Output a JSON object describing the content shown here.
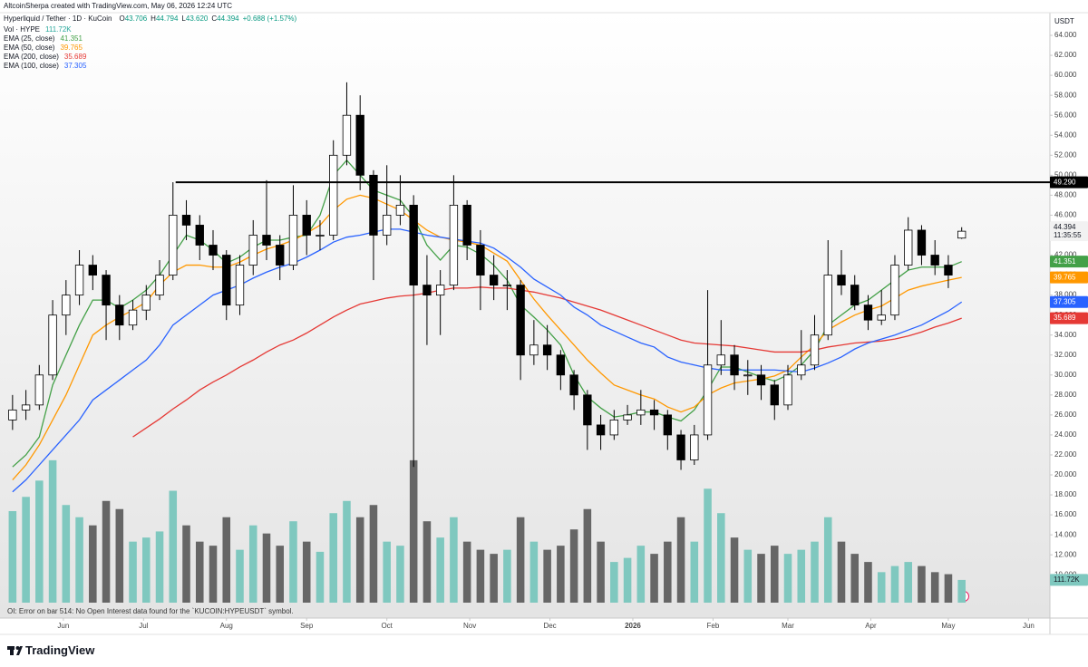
{
  "page": {
    "attribution": "AltcoinSherpa created with TradingView.com, May 06, 2026 12:24 UTC",
    "logo": "TradingView",
    "status": "OI: Error on bar 514: No Open Interest data found for the `KUCOIN:HYPEUSDT` symbol."
  },
  "chart_data": {
    "type": "candlestick",
    "title": "Hyperliquid / Tether · 1D · KuCoin",
    "ohlc_legend": [
      {
        "key": "O",
        "label": "43.706"
      },
      {
        "key": "H",
        "label": "44.794"
      },
      {
        "key": "L",
        "label": "43.620"
      },
      {
        "key": "C",
        "label": "44.394"
      }
    ],
    "change": "+0.688 (+1.57%)",
    "y_unit": "USDT",
    "countdown": "11:35:55",
    "candle_colors": {
      "up": "#ffffff",
      "down": "#000000",
      "outline": "#000000"
    },
    "x": [
      3,
      8,
      13,
      18,
      23,
      28,
      33,
      38,
      43,
      48,
      53,
      58,
      63,
      68,
      73,
      78,
      83,
      88,
      93,
      98,
      103,
      108,
      113,
      118,
      123,
      128,
      133,
      138,
      143,
      148,
      153,
      158,
      163,
      168,
      173,
      178,
      183,
      188,
      193,
      198,
      203,
      208,
      213,
      218,
      223,
      228,
      233,
      238,
      243,
      248,
      253,
      258,
      263,
      268,
      273,
      278,
      283,
      288,
      293,
      298,
      303,
      308,
      313,
      318,
      323,
      328,
      333,
      338,
      343,
      348,
      353,
      358
    ],
    "open": [
      25.5,
      26.5,
      27,
      30,
      36,
      38,
      41,
      40,
      37,
      35,
      36.5,
      38,
      40,
      46,
      45,
      43,
      42,
      37,
      41,
      44,
      43,
      41,
      46,
      44,
      44,
      52,
      56,
      50,
      44,
      46,
      47,
      39,
      38,
      39,
      47,
      43,
      40,
      39,
      39,
      32,
      33,
      32,
      30,
      28,
      25,
      24,
      25.5,
      26,
      26.5,
      26,
      24,
      21.5,
      24,
      31,
      32,
      30,
      30,
      29,
      27,
      30,
      31,
      34,
      40,
      39,
      37,
      35.5,
      36,
      41,
      44.5,
      42,
      41,
      43.706
    ],
    "high": [
      28,
      28.5,
      31,
      37.5,
      39.5,
      42.5,
      42,
      40.5,
      38,
      37.5,
      39,
      41.5,
      49.3,
      47.5,
      46,
      44.5,
      42.5,
      42,
      45.5,
      49.5,
      44,
      49,
      47.5,
      45.5,
      53.5,
      59.3,
      58,
      50.5,
      51,
      50,
      48,
      42,
      40.5,
      50,
      47.5,
      44.5,
      42,
      40.5,
      39.5,
      35.5,
      35,
      32.5,
      30.5,
      28.5,
      26,
      26.5,
      27,
      28.5,
      27.5,
      26.5,
      24.5,
      25,
      38.5,
      35.5,
      33,
      31.5,
      31,
      29.5,
      31,
      34.5,
      36,
      43.5,
      42.5,
      40,
      38,
      38.5,
      42,
      45.8,
      45,
      43.5,
      42,
      44.794
    ],
    "low": [
      24.5,
      25.5,
      26.5,
      29.5,
      34,
      37,
      38.5,
      33.5,
      33.5,
      34.5,
      35.5,
      37.5,
      39.5,
      43.5,
      41.5,
      40.5,
      35.5,
      36,
      40,
      41.5,
      39.5,
      40.5,
      42,
      42.5,
      43.5,
      51,
      48.5,
      39.5,
      43,
      45,
      20.8,
      33,
      34,
      38.5,
      41.5,
      36.5,
      37.5,
      36.5,
      29.5,
      31,
      30.5,
      28.5,
      26.5,
      22.5,
      22.5,
      23.5,
      25,
      25,
      24.5,
      22.5,
      20.5,
      21,
      23.5,
      30,
      28.5,
      28,
      27.5,
      25.5,
      26.5,
      29.5,
      30.5,
      33.5,
      38,
      36.5,
      34.5,
      35,
      35.5,
      40.5,
      41,
      40,
      38.7,
      43.62
    ],
    "close": [
      26.5,
      27,
      30,
      36,
      38,
      41,
      40,
      37,
      35,
      36.5,
      38,
      40,
      46,
      45,
      43,
      42,
      37,
      41,
      44,
      43,
      41,
      46,
      44,
      44,
      52,
      56,
      50,
      44,
      46,
      47,
      39,
      38,
      39,
      47,
      43,
      40,
      39,
      39,
      32,
      33,
      32,
      30,
      28,
      25,
      24,
      25.5,
      26,
      26.5,
      26,
      24,
      21.5,
      24,
      31,
      32,
      30,
      30,
      29,
      27,
      30,
      31,
      34,
      40,
      39,
      37,
      35.5,
      36,
      41,
      44.5,
      42,
      41,
      40,
      44.394
    ],
    "series": [
      {
        "name": "Vol · HYPE",
        "type": "bar",
        "axis": "y2",
        "colors": {
          "up": "#7fc8bf",
          "down": "#666666"
        },
        "last_label": "111.72K",
        "values": [
          450,
          520,
          600,
          700,
          480,
          420,
          380,
          500,
          460,
          300,
          320,
          350,
          550,
          380,
          300,
          280,
          420,
          260,
          380,
          340,
          280,
          400,
          300,
          250,
          440,
          500,
          420,
          480,
          300,
          280,
          700,
          400,
          320,
          420,
          300,
          260,
          240,
          260,
          420,
          300,
          260,
          280,
          360,
          460,
          300,
          200,
          220,
          280,
          240,
          300,
          420,
          300,
          560,
          440,
          320,
          260,
          240,
          280,
          240,
          260,
          300,
          420,
          300,
          240,
          200,
          150,
          180,
          200,
          180,
          150,
          140,
          111.72
        ]
      },
      {
        "name": "EMA (25, close)",
        "type": "line",
        "color": "#43a047",
        "values": [
          20.8,
          22,
          23.8,
          29,
          32,
          35,
          37.5,
          37.5,
          36.7,
          37.5,
          38.5,
          40,
          42,
          44,
          43.5,
          42.5,
          41.2,
          41.8,
          42.8,
          43.5,
          43.5,
          43.8,
          44,
          46,
          50,
          51.5,
          50,
          48.5,
          48,
          47.5,
          45.8,
          43,
          41.5,
          43,
          42.8,
          42.1,
          41,
          39.5,
          37,
          35.8,
          34.5,
          33,
          30,
          27.8,
          26.7,
          25.8,
          26,
          26.3,
          26.3,
          25.8,
          25.4,
          26.5,
          28.5,
          30.8,
          30.8,
          30.3,
          29.8,
          29.4,
          30,
          31,
          32.5,
          35,
          36,
          37,
          37.5,
          38.5,
          39.5,
          40.5,
          40.8,
          40.8,
          40.8,
          41.351
        ]
      },
      {
        "name": "EMA (50, close)",
        "type": "line",
        "color": "#ff9800",
        "values": [
          19.5,
          21,
          23,
          25.5,
          28,
          31,
          34,
          35,
          35.8,
          36.5,
          37.3,
          39,
          40.3,
          41,
          41,
          40.8,
          40.8,
          41.3,
          42,
          42.6,
          43,
          43.5,
          44.2,
          45,
          46.5,
          47.6,
          48,
          47.7,
          47.1,
          46.5,
          45.5,
          44.5,
          43.8,
          43.5,
          43.3,
          43,
          42.2,
          41.4,
          39.5,
          37.6,
          36,
          34.5,
          33,
          31.5,
          30.2,
          29,
          28.5,
          28,
          27.6,
          26.8,
          26.3,
          26.8,
          28,
          28.7,
          29.2,
          29.4,
          29.6,
          29.9,
          30.5,
          31.8,
          33,
          34.5,
          35.3,
          36,
          36.5,
          36.9,
          37.7,
          38.5,
          38.9,
          39.2,
          39.5,
          39.765
        ]
      },
      {
        "name": "EMA (200, close)",
        "type": "line",
        "color": "#e53935",
        "values": [
          null,
          null,
          null,
          null,
          null,
          null,
          null,
          null,
          null,
          23.8,
          24.7,
          25.6,
          26.6,
          27.5,
          28.5,
          29.3,
          30,
          30.8,
          31.5,
          32.3,
          33,
          33.5,
          34.2,
          35,
          35.8,
          36.5,
          37.1,
          37.4,
          37.7,
          37.9,
          38,
          38.2,
          38.5,
          38.7,
          38.7,
          38.8,
          38.7,
          38.7,
          38.5,
          38.3,
          38,
          37.7,
          37.3,
          36.9,
          36.5,
          36,
          35.5,
          35,
          34.5,
          34,
          33.5,
          33.2,
          33.1,
          33,
          32.9,
          32.7,
          32.5,
          32.3,
          32.3,
          32.3,
          32.5,
          32.8,
          33,
          33.2,
          33.3,
          33.4,
          33.6,
          33.9,
          34.3,
          34.8,
          35.2,
          35.689
        ]
      },
      {
        "name": "EMA (100, close)",
        "type": "line",
        "color": "#2962ff",
        "values": [
          18.3,
          19.5,
          21,
          22.5,
          24,
          25.5,
          27.5,
          28.5,
          29.5,
          30.5,
          31.5,
          33,
          35,
          36,
          37,
          38,
          38.5,
          39,
          39.7,
          40.3,
          40.8,
          41.2,
          41.8,
          42.5,
          43.3,
          43.8,
          44,
          44.3,
          44.6,
          44.6,
          44.3,
          44,
          43.8,
          43.6,
          43.4,
          43.2,
          42.7,
          41.8,
          40.8,
          39.6,
          38.8,
          38,
          36.8,
          36,
          35,
          34.4,
          33.8,
          33.2,
          32.8,
          31.8,
          31.3,
          31,
          30.7,
          30.5,
          30.5,
          30.5,
          30.5,
          30.5,
          30.4,
          30.3,
          30.7,
          31.2,
          31.8,
          32.6,
          33.2,
          33.6,
          34,
          34.5,
          35,
          35.7,
          36.4,
          37.305
        ]
      }
    ],
    "hline": {
      "value": 49.29,
      "label": "49.290",
      "x_start": 64
    },
    "xlim": [
      0,
      391
    ],
    "xticks": [
      {
        "value": 22,
        "label": "Jun"
      },
      {
        "value": 52,
        "label": "Jul"
      },
      {
        "value": 83,
        "label": "Aug"
      },
      {
        "value": 113,
        "label": "Sep"
      },
      {
        "value": 143,
        "label": "Oct"
      },
      {
        "value": 174,
        "label": "Nov"
      },
      {
        "value": 204,
        "label": "Dec"
      },
      {
        "value": 235,
        "label": "2026"
      },
      {
        "value": 265,
        "label": "Feb"
      },
      {
        "value": 293,
        "label": "Mar"
      },
      {
        "value": 324,
        "label": "Apr"
      },
      {
        "value": 353,
        "label": "May"
      },
      {
        "value": 383,
        "label": "Jun"
      }
    ],
    "ylim": [
      7.21,
      66.27
    ],
    "yticks": [
      {
        "value": 10,
        "label": "10.000"
      },
      {
        "value": 12,
        "label": "12.000"
      },
      {
        "value": 14,
        "label": "14.000"
      },
      {
        "value": 16,
        "label": "16.000"
      },
      {
        "value": 18,
        "label": "18.000"
      },
      {
        "value": 20,
        "label": "20.000"
      },
      {
        "value": 22,
        "label": "22.000"
      },
      {
        "value": 24,
        "label": "24.000"
      },
      {
        "value": 26,
        "label": "26.000"
      },
      {
        "value": 28,
        "label": "28.000"
      },
      {
        "value": 30,
        "label": "30.000"
      },
      {
        "value": 32,
        "label": "32.000"
      },
      {
        "value": 34,
        "label": "34.000"
      },
      {
        "value": 36,
        "label": "36.000"
      },
      {
        "value": 38,
        "label": "38.000"
      },
      {
        "value": 40,
        "label": "40.000"
      },
      {
        "value": 42,
        "label": "42.000"
      },
      {
        "value": 44,
        "label": "44.000"
      },
      {
        "value": 46,
        "label": "46.000"
      },
      {
        "value": 48,
        "label": "48.000"
      },
      {
        "value": 50,
        "label": "50.000"
      },
      {
        "value": 52,
        "label": "52.000"
      },
      {
        "value": 54,
        "label": "54.000"
      },
      {
        "value": 56,
        "label": "56.000"
      },
      {
        "value": 58,
        "label": "58.000"
      },
      {
        "value": 60,
        "label": "60.000"
      },
      {
        "value": 62,
        "label": "62.000"
      },
      {
        "value": 64,
        "label": "64.000"
      }
    ],
    "y2lim": [
      0,
      2900
    ],
    "grid": false
  }
}
